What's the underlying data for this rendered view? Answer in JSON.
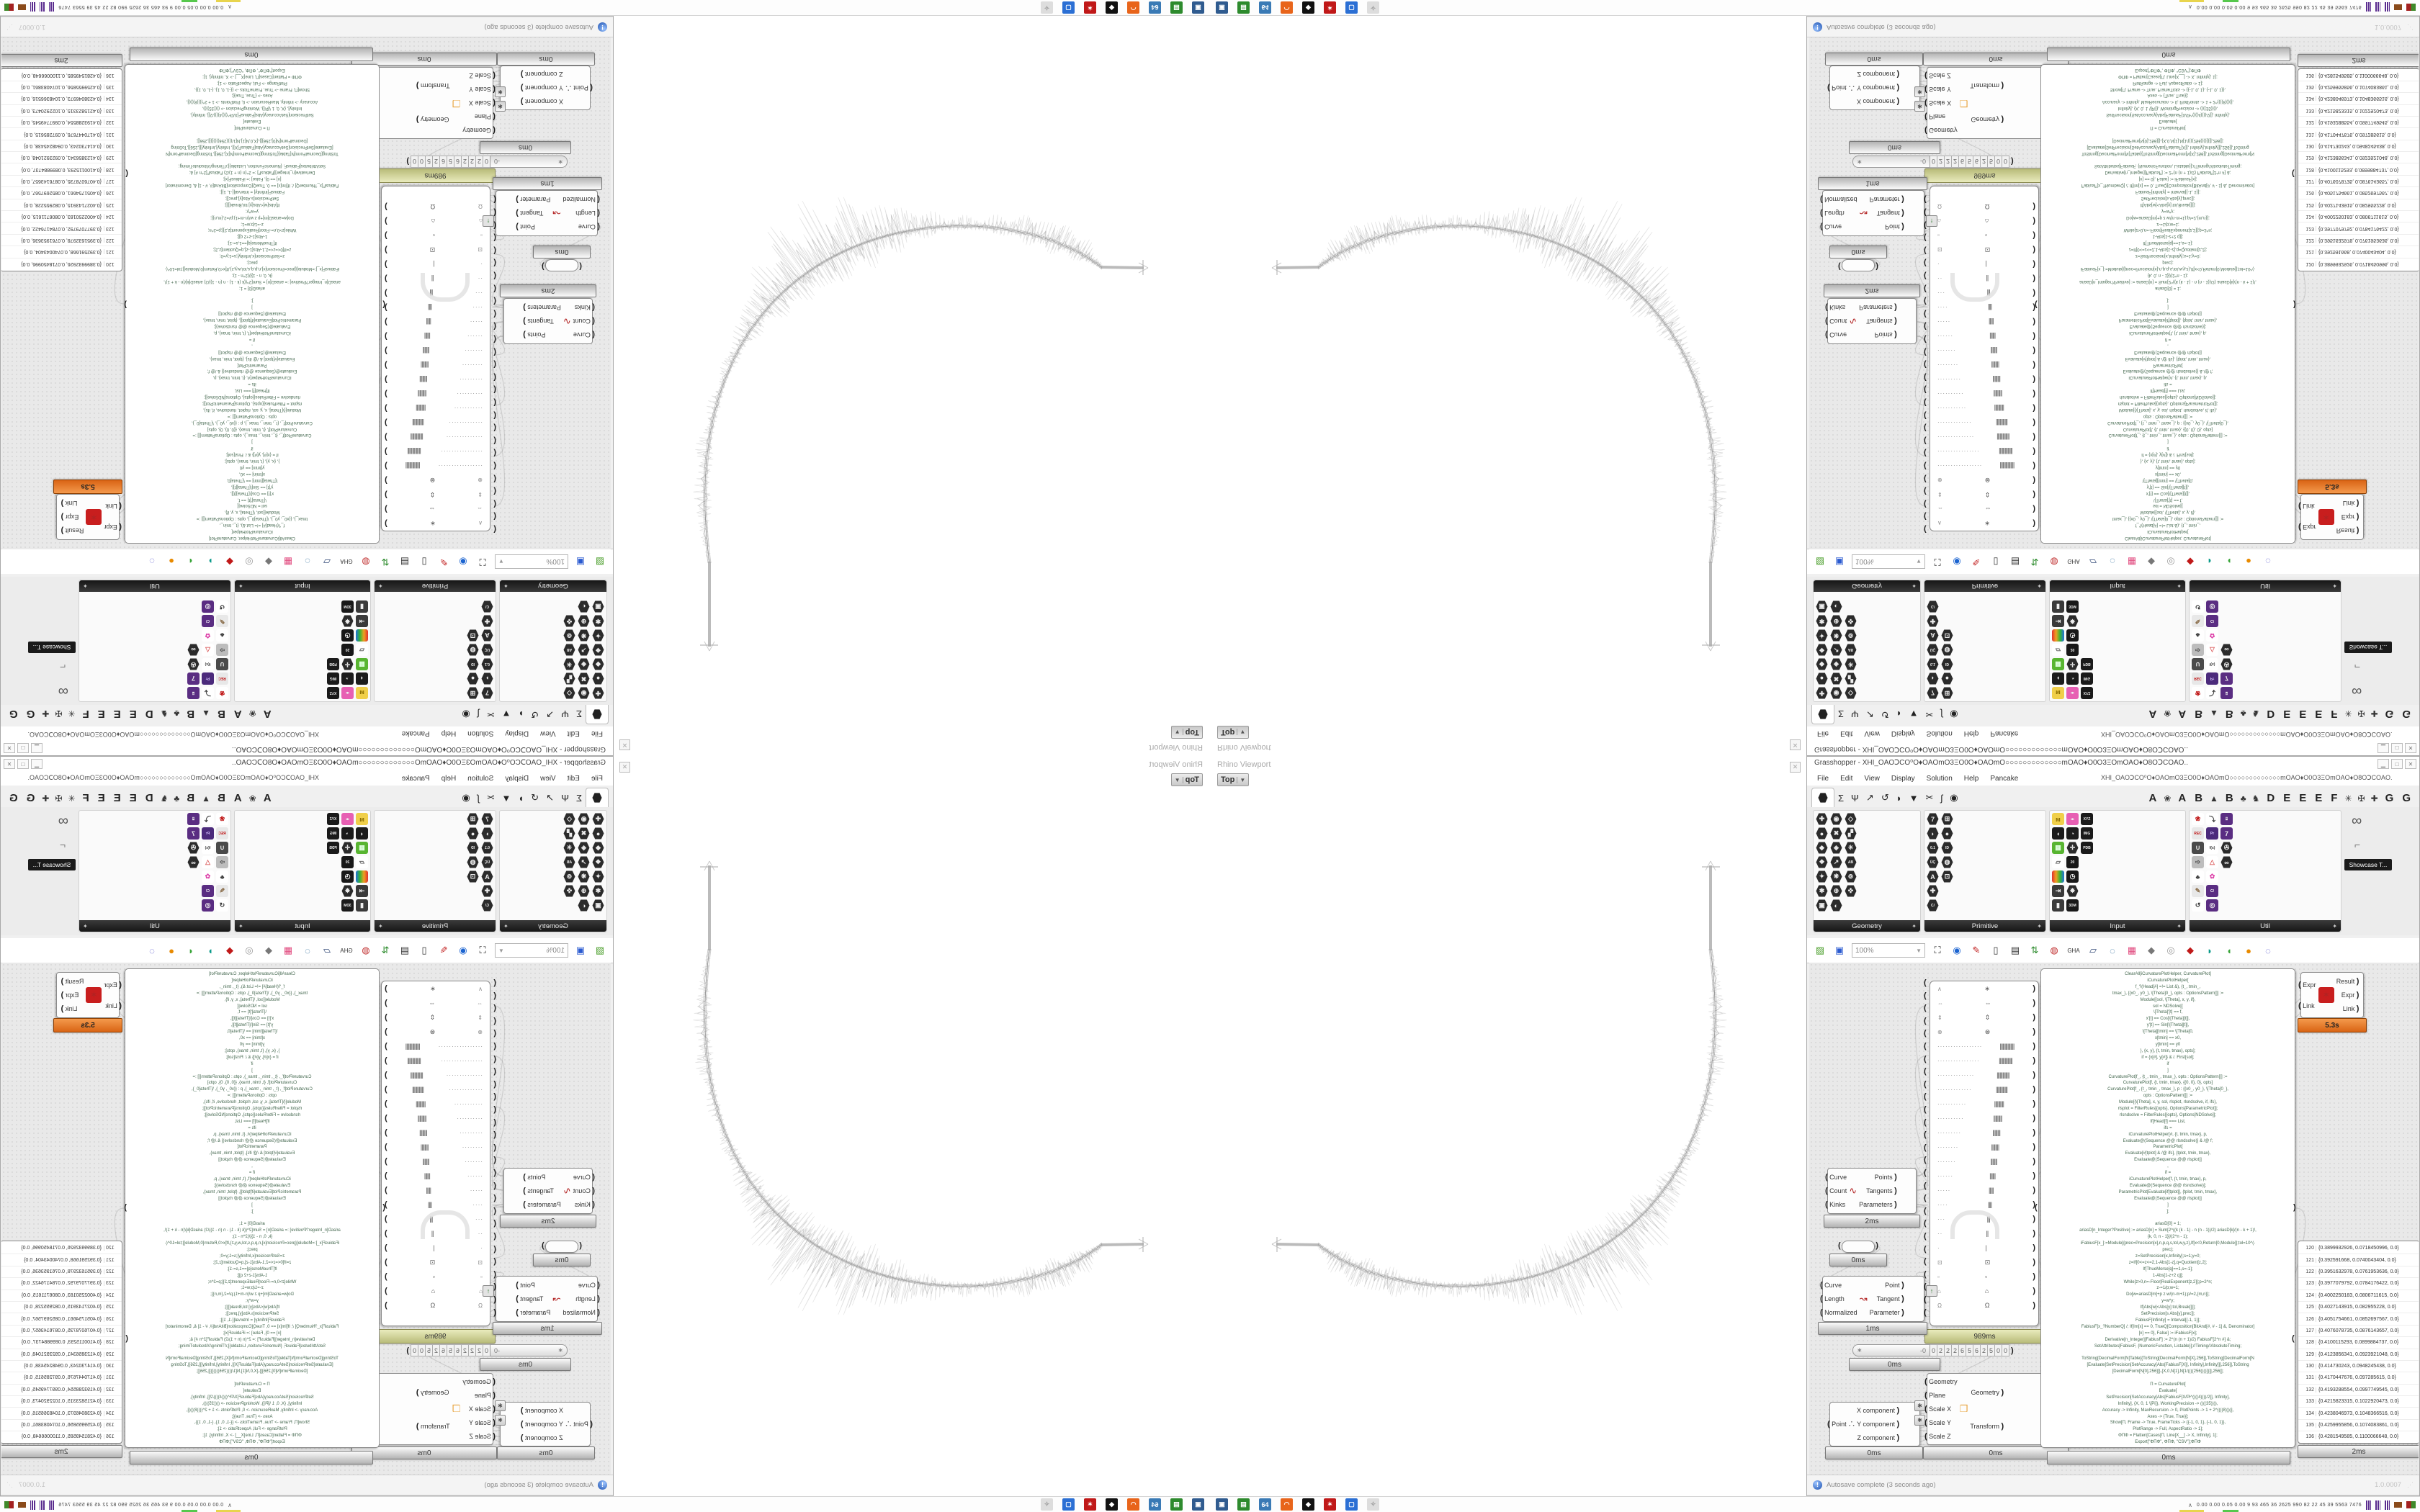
{
  "window": {
    "title": "Grasshopper - XHI_OAOↃCO⁰O♦OAOmO3ΞO0O♦OAOmO○○○○○○○○○○○○○mOAO♦O0O3ΞOmOAO♦O8OↃCOAO..",
    "doc_dropdown": "XHI_OAOↃCO⁰O♦OAOmO3ΞO0O♦OAOmO○○○○○○○○○○○○○mOAO♦O0O3ΞOmOAO♦O8OↃCOAO.",
    "controls": {
      "min": "▁",
      "max": "□",
      "close": "✕"
    },
    "menus": [
      "File",
      "Edit",
      "View",
      "Display",
      "Solution",
      "Help",
      "Pancake"
    ],
    "tabs_left": [
      "Σ",
      "Ψ",
      "↗",
      "↺",
      "◗",
      "▼",
      "✂",
      "ʃ",
      "◉"
    ],
    "tabs_right": [
      "A",
      "❀",
      "A",
      "B",
      "▲",
      "B",
      "♣",
      "♞",
      "D",
      "E",
      "E",
      "E",
      "F",
      "✳",
      "✠",
      "✚",
      "G",
      "G"
    ],
    "palette": {
      "showcase_label": "Showcase T...",
      "categories": [
        {
          "name": "Geometry",
          "icons": [
            {
              "g": "✚"
            },
            {
              "g": "●"
            },
            {
              "g": "◆"
            },
            {
              "g": "❖"
            },
            {
              "g": "✦"
            },
            {
              "g": "✱"
            },
            {
              "g": "▣"
            },
            {
              "g": "◉"
            },
            {
              "g": "✖"
            },
            {
              "g": "◈"
            },
            {
              "g": "↗"
            },
            {
              "g": "❋"
            },
            {
              "g": "⊕"
            },
            {
              "g": "◐"
            },
            {
              "g": "◇"
            },
            {
              "g": "▞"
            },
            {
              "g": "✳"
            },
            {
              "g": "AB",
              "sm": true
            },
            {
              "g": "⊚"
            },
            {
              "g": "✜"
            }
          ]
        },
        {
          "name": "Primitive",
          "icons": [
            {
              "g": "7"
            },
            {
              "g": "◗"
            },
            {
              "g": "0.1",
              "sm": true
            },
            {
              "g": "ÜÇ",
              "sm": true
            },
            {
              "g": "A"
            },
            {
              "g": "✚"
            },
            {
              "g": "C/",
              "sm": true
            },
            {
              "g": "⊞"
            },
            {
              "g": "●"
            },
            {
              "g": "ID",
              "sm": true
            },
            {
              "g": "◍"
            },
            {
              "g": "⊡"
            }
          ]
        },
        {
          "name": "Input",
          "icons": [
            {
              "g": "ᴍ",
              "bg": "#f0cf4a",
              "fg": "#8a6d00"
            },
            {
              "g": "◖",
              "bg": "#1c1c1c"
            },
            {
              "g": "▦",
              "bg": "#58b531",
              "fg": "#dfffdf"
            },
            {
              "g": "▱",
              "bg": "#ffffff",
              "fg": "#555"
            },
            {
              "g": "",
              "bg": "linear-gradient(90deg,#e03030,#f0a020,#35b535,#2070e0)"
            },
            {
              "g": "⇥",
              "bg": "#3a3a3a"
            },
            {
              "g": "▮",
              "bg": "#3a3a3a"
            },
            {
              "g": "◂▸",
              "bg": "#e75fb3",
              "sm": true
            },
            {
              "g": "◔",
              "bg": "#1c1c1c"
            },
            {
              "g": "✛",
              "bg": "#2b2b2b"
            },
            {
              "g": "20",
              "bg": "#181818",
              "sm": true
            },
            {
              "g": "◷",
              "bg": "#181818"
            },
            {
              "g": "✸",
              "bg": "#2b2b2b"
            },
            {
              "g": "3DM",
              "bg": "#1a1a1a",
              "sm": true
            },
            {
              "g": "XYZ",
              "bg": "#1a1a1a",
              "sm": true
            },
            {
              "g": "IMG",
              "bg": "#1a1a1a",
              "sm": true
            },
            {
              "g": "PDB",
              "bg": "#1a1a1a",
              "sm": true
            }
          ]
        },
        {
          "name": "Util",
          "icons": [
            {
              "g": "❀",
              "bg": "#ffffff",
              "fg": "#c01818"
            },
            {
              "g": "REC",
              "bg": "#e8e8e8",
              "fg": "#c01818",
              "sm": true
            },
            {
              "g": "∪",
              "bg": "#4a4a4a"
            },
            {
              "g": "➩",
              "bg": "#bdbdbd",
              "fg": "#555"
            },
            {
              "g": "♣",
              "bg": "#ffffff",
              "fg": "#333"
            },
            {
              "g": "✎",
              "bg": "#e8e8e8",
              "fg": "#8a6d4a"
            },
            {
              "g": "↺",
              "bg": "#ffffff",
              "fg": "#333"
            },
            {
              "g": "⤵",
              "bg": "#ffffff",
              "fg": "#333"
            },
            {
              "g": "Pr",
              "bg": "#4b2a7b",
              "fg": "#d9c6ff",
              "sm": true
            },
            {
              "g": "f(x)",
              "bg": "#ffffff",
              "fg": "#333",
              "sm": true
            },
            {
              "g": "△",
              "bg": "#ffffff",
              "fg": "#d66"
            },
            {
              "g": "✿",
              "bg": "#ffffff",
              "fg": "#d4a"
            },
            {
              "g": "C/",
              "bg": "#5a2d82",
              "fg": "#fff",
              "sm": true
            },
            {
              "g": "◎",
              "bg": "#5a2d82"
            },
            {
              "g": "⌸",
              "bg": "#5a2d82",
              "sm": true
            },
            {
              "g": "7",
              "bg": "#5a2d82"
            },
            {
              "g": "✇",
              "bg": "#2b2b2b"
            },
            {
              "g": "∞",
              "bg": "#2b2b2b"
            }
          ]
        }
      ]
    },
    "toolbar": {
      "zoom": "100%",
      "icons": [
        {
          "g": "▨",
          "fg": "#4a9e2a"
        },
        {
          "g": "▣",
          "fg": "#2a5ad0"
        },
        {
          "g": "⛶",
          "fg": "#222"
        },
        {
          "g": "◉",
          "fg": "#1c64d0"
        },
        {
          "g": "✎",
          "fg": "#c22222"
        },
        {
          "g": "▯",
          "fg": "#333"
        },
        {
          "g": "▤",
          "fg": "#333"
        },
        {
          "g": "⇅",
          "fg": "#2a8a2a"
        },
        {
          "g": "◍",
          "fg": "#c03030"
        },
        {
          "g": "GHA",
          "fg": "#333",
          "sm": true
        },
        {
          "g": "▱",
          "fg": "#334a77"
        },
        {
          "g": "◌",
          "fg": "#2a6a99"
        },
        {
          "g": "▦",
          "fg": "#e0457b"
        },
        {
          "g": "◆",
          "fg": "#777"
        },
        {
          "g": "◎",
          "fg": "#999"
        },
        {
          "g": "◆",
          "fg": "#c01818"
        },
        {
          "g": "◗",
          "fg": "#0a9a8a"
        },
        {
          "g": "◖",
          "fg": "#3aa53a"
        },
        {
          "g": "●",
          "fg": "#e88a00"
        },
        {
          "g": "◌",
          "fg": "#5555cc"
        }
      ]
    },
    "status": {
      "left": "Autosave complete (3 seconds ago)",
      "right": "1.0.0007"
    }
  },
  "viewport": {
    "label": "Rhino Viewport",
    "tab": "Top",
    "tab_arrow": "▼",
    "close": "✕"
  },
  "canvas": {
    "nodes": {
      "divide": {
        "in": [
          "Curve",
          "Count",
          "Kinks"
        ],
        "out": [
          "Points",
          "Tangents",
          "Parameters"
        ],
        "time": "2ms",
        "icon": "∿"
      },
      "capsule": {
        "time": "0ms"
      },
      "evalLength": {
        "in": [
          "Curve",
          "Length",
          "Normalized"
        ],
        "out": [
          "Point",
          "Tangent",
          "Parameter"
        ],
        "time": "1ms",
        "icon": "↝"
      },
      "pointDecompose": {
        "in": [
          "Point"
        ],
        "out": [
          "X component",
          "Y component",
          "Z component"
        ],
        "time": "0ms",
        "icon": "∴"
      },
      "scale": {
        "in": [
          "Geometry",
          "Plane",
          "Scale X",
          "Scale Y",
          "Scale Z"
        ],
        "out": [
          "Geometry",
          "Transform"
        ],
        "time": "0ms",
        "icon": "❒"
      },
      "mathematica": {
        "in": [
          "Expr",
          "Link"
        ],
        "out": [
          "Result",
          "Expr",
          "Link"
        ],
        "time": "5.3s",
        "icon": "✶"
      },
      "bigpanel": {
        "time": "989ms"
      },
      "digits": {
        "time": "0ms"
      },
      "script": {
        "time": "0ms"
      },
      "numbers": {
        "time": "2ms"
      }
    },
    "bigpanel_rows": [
      {
        "l": "∧",
        "r": "∗"
      },
      {
        "l": "⇔",
        "r": "⇔"
      },
      {
        "l": "⇕",
        "r": "⇕"
      },
      {
        "l": "⊗",
        "r": "⊗"
      },
      {
        "l": "·················",
        "r": "|||||||||||||||"
      },
      {
        "l": "················",
        "r": "||||||||||||||"
      },
      {
        "l": "··············",
        "r": "|||||||||||||"
      },
      {
        "l": "·············",
        "r": "||||||||||||"
      },
      {
        "l": "···········",
        "r": "||||||||||"
      },
      {
        "l": "··········",
        "r": "|||||||||"
      },
      {
        "l": "·········",
        "r": "||||||||"
      },
      {
        "l": "········",
        "r": "||||||||"
      },
      {
        "l": "·······",
        "r": "|||||||"
      },
      {
        "l": "······",
        "r": "||||||"
      },
      {
        "l": "·····",
        "r": "|||||"
      },
      {
        "l": "····",
        "r": "||||"
      },
      {
        "l": "···",
        "r": "|||"
      },
      {
        "l": "··",
        "r": "||"
      },
      {
        "l": "·",
        "r": "|"
      },
      {
        "l": "⊡",
        "r": "⊡"
      },
      {
        "l": "▫",
        "r": "▫"
      },
      {
        "l": "⌂",
        "r": "⌂"
      },
      {
        "l": "Ω",
        "r": "Ω"
      }
    ],
    "digit_strip": {
      "star": "∗",
      "sign": "-0",
      "cells": [
        "0",
        "2",
        "2",
        "2",
        "6",
        "5",
        "6",
        "2",
        "5",
        "0",
        "0"
      ]
    },
    "script_lines": [
      "ClearAll[iCurvaturePlotHelper, CurvaturePlot]",
      "iCurvaturePlotHelper[",
      "f_?(Head[#] =!= List &), {t_, tmin_,",
      "tmax_}, {{x0_, y0_}, \\[Theta]0_}, opts : OptionsPattern[]] :=",
      "Module[{sol, \\[Theta], x, y, if},",
      "sol = NDSolve[{",
      "\\[Theta]'[t] == f,",
      "x'[t] == Cos[\\[Theta][t]],",
      "y'[t] == Sin[\\[Theta][t]],",
      "\\[Theta][tmin] == \\[Theta]0,",
      "x[tmin] == x0,",
      "y[tmin] == y0",
      "}, {x, y}, {t, tmin, tmax}, opts];",
      "if = {x[#], y[#]} & /. First[sol];",
      "if",
      "]",
      "CurvaturePlot[f_, {t_, tmin_, tmax_}, opts : OptionsPattern[]] :=",
      "CurvaturePlot[f, {t, tmin, tmax}, {{0, 0}, 0}, opts]",
      "CurvaturePlot[f_, {t_, tmin_, tmax_}, p : {{x0_, y0_}, \\[Theta]0_},",
      "opts : OptionsPattern[]] :=",
      "Module[{\\[Theta], x, y, sol, rlsplot, rlsndsolve, if, ifs},",
      "rlsplot = FilterRules[{opts}, Options[ParametricPlot]];",
      "rlsndsolve = FilterRules[{opts}, Options[NDSolve]];",
      "If[Head[f] === List,",
      "ifs =",
      "iCurvaturePlotHelper[#, {t, tmin, tmax}, p,",
      "Evaluate@(Sequence @@ rlsndsolve)] & /@ f;",
      "ParametricPlot[",
      "Evaluate[#[tplot] & /@ ifs], {tplot, tmin, tmax},",
      "Evaluate@(Sequence @@ rlsplot)]",
      ",",
      "if =",
      "iCurvaturePlotHelper[f, {t, tmin, tmax}, p,",
      "Evaluate@(Sequence @@ rlsndsolve)];",
      "ParametricPlot[Evaluate[if[tplot]], {tplot, tmin, tmax},",
      "Evaluate@(Sequence @@ rlsplot)]",
      "]",
      "];",
      "",
      "ariasD[0] = 1;",
      "ariasD[n_Integer?Positive] := ariasD[n] = Sum[2^((k (k - 1) - n (n - 1))/2) ariasD[k]/(n - k + 1)!,",
      "{k, 0, n - 1}]/(2^n - 1);",
      "iFabiusF[x_]:=Module[{prec=Precision[x],n,p,q,s,tol,w,y,z},If[x<0,Return[0,Module]];tol=10^(-",
      "prec);",
      "z=SetPrecision[x,Infinity];s=1;y=0;",
      "z=If[0<=z<=2,1-Abs[1-z],q=Quotient[z,2];",
      "If[ThueMorse[q]==1,s=-1];",
      "1-Abs[1-z+2 q]];",
      "While[z>0,n=-Floor[RealExponent[z,2]];p=2^n;",
      "z-=1/p;w=1;",
      "Do[w=ariasD[m]+p z w/(n-m+1);p/=2,{m,n}];",
      "y=w*y;",
      "If[Abs[w]<Abs[y] tol,Break[]]];",
      "SetPrecision[s Abs[y],prec]];",
      "FabiusF[Infinity] = Interval[{-1, 1}];",
      "FabiusF[x_?NumberQ] /; If[Im[x] == 0, TrueQ[Composition[BitAnd[#, # - 1] &, Denominator]",
      "[x] == 0], False] := iFabiusF[x];",
      "Derivative[n_Integer][FabiusF] := 2^(n (n + 1)/2) FabiusF[2^n #] &;",
      "SetAttributes[FabiusF, {NumericFunction, Listable}];//Timing//AbsoluteTiming;",
      "",
      "ToString[DecimalForm[N[Table[{ToString[DecimalForm[N[X],256]],ToString[DecimalForm[N",
      "[Evaluate[SetPrecision[SetAccuracy[Abs[FabiusF[X]], Infinity],Infinity]]],256]],ToString",
      "[DecimalForm[N[0],256]]},{X,0,N[1],N[1/((((256))))]}]],256]];",
      "",
      "Π = CurvaturePlot[",
      "Evaluate[",
      "SetPrecision[SetAccuracy[Abs[FabiusF[X/Pi^((((4))))/2]], Infinity],",
      "Infinity], {X, 0, 1 \\[Pi]}, WorkingPrecision -> ((((35)))),",
      "Accuracy -> Infinity, MaxRecursion -> 0, PlotPoints -> 1 + 2^((((8))))],",
      "Axes -> {True, True}];",
      "Show[Π, Frame -> True, FrameTicks -> {{-1, 0, 1}, {-1, 0, 1}},",
      "PlotRange -> Full, AspectRatio -> 1];",
      "ΦΠΦ = Flatten[Cases[Π, Line[X__] -> X, Infinity], 1];",
      "Export[\"ΦΠΦ\", ΦΠΦ, \"CSV\"];ΦΠΦ"
    ],
    "numbers": [
      {
        "i": "120",
        "v": "{0.3899932926, 0.0718450996, 0.0}"
      },
      {
        "i": "121",
        "v": "{0.392591668, 0.0740043404, 0.0}"
      },
      {
        "i": "122",
        "v": "{0.3951632978, 0.0761953636, 0.0}"
      },
      {
        "i": "123",
        "v": "{0.3977079792, 0.0784176422, 0.0}"
      },
      {
        "i": "124",
        "v": "{0.4002250183, 0.0806711615, 0.0}"
      },
      {
        "i": "125",
        "v": "{0.4027143915, 0.082955228, 0.0}"
      },
      {
        "i": "126",
        "v": "{0.4051754661, 0.0852697567, 0.0}"
      },
      {
        "i": "127",
        "v": "{0.4076078735, 0.0876143657, 0.0}"
      },
      {
        "i": "128",
        "v": "{0.4100115293, 0.0899884737, 0.0}"
      },
      {
        "i": "129",
        "v": "{0.4123856341, 0.0923921048, 0.0}"
      },
      {
        "i": "130",
        "v": "{0.414730243, 0.0948245438, 0.0}"
      },
      {
        "i": "131",
        "v": "{0.4170447676, 0.097285615, 0.0}"
      },
      {
        "i": "132",
        "v": "{0.4193288554, 0.0997749545, 0.0}"
      },
      {
        "i": "133",
        "v": "{0.4215823315, 0.1022920473, 0.0}"
      },
      {
        "i": "134",
        "v": "{0.4238046973, 0.1048366516, 0.0}"
      },
      {
        "i": "135",
        "v": "{0.4259955856, 0.1074083861, 0.0}"
      },
      {
        "i": "136",
        "v": "{0.4281549585, 0.1100066648, 0.0}"
      },
      {
        "i": "137",
        "v": "{0.4302820424, 0.112631419, 0.0}"
      }
    ]
  },
  "taskbar": {
    "icons": [
      {
        "g": "▣",
        "bg": "#2f5b8f"
      },
      {
        "g": "▤",
        "bg": "#2d8a2d"
      },
      {
        "g": "64",
        "bg": "#3a7ab5"
      },
      {
        "g": "◠",
        "bg": "#e8641a"
      },
      {
        "g": "◆",
        "bg": "#111111"
      },
      {
        "g": "✶",
        "bg": "#c01818"
      },
      {
        "g": "▢",
        "bg": "#2b6fd4"
      },
      {
        "g": "✧",
        "bg": "#dddddd",
        "fg": "#999999"
      }
    ],
    "tray": {
      "chevron": "∧",
      "stats": "0.00 0.00 0.05 0.00   9   93   465   36   2625 990   82   22   45   39   5563 7476"
    }
  }
}
